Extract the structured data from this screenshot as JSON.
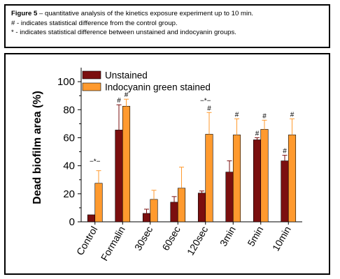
{
  "caption": {
    "figure_label": "Figure 5",
    "line1_rest": " – quantitative analysis of the kinetics exposure experiment up to 10 min.",
    "line2": "# - indicates statistical difference from the control group.",
    "line3": "* - indicates statistical difference between unstained and indocyanin groups."
  },
  "chart_data": {
    "type": "bar",
    "ylabel": "Dead biofilm area (%)",
    "ylim": [
      0,
      110
    ],
    "yticks": [
      0,
      20,
      40,
      60,
      80,
      100
    ],
    "categories": [
      "Control",
      "Formalin",
      "30sec",
      "60sec",
      "120sec",
      "3min",
      "5min",
      "10min"
    ],
    "legend_position": "top-left",
    "series": [
      {
        "name": "Unstained",
        "color": "#7b0f0f",
        "values": [
          5,
          65.5,
          6,
          14,
          20.5,
          35.5,
          58.5,
          43.5
        ],
        "errors": [
          0,
          18,
          3,
          4,
          1.5,
          8,
          1.5,
          4
        ],
        "markers": [
          "",
          "#",
          "",
          "",
          "",
          "",
          "#",
          "#"
        ]
      },
      {
        "name": "Indocyanin green stained",
        "color": "#ff9a2e",
        "values": [
          27.5,
          82.5,
          16,
          24,
          62.5,
          62,
          66,
          62
        ],
        "errors": [
          9,
          5,
          6.5,
          15,
          15.5,
          11.5,
          6.5,
          11.5
        ],
        "markers": [
          "",
          "#",
          "",
          "",
          "#",
          "#",
          "#",
          "#"
        ]
      }
    ],
    "between_markers": [
      {
        "category": "Control",
        "symbol": "−*−"
      },
      {
        "category": "120sec",
        "symbol": "−*−"
      }
    ]
  }
}
